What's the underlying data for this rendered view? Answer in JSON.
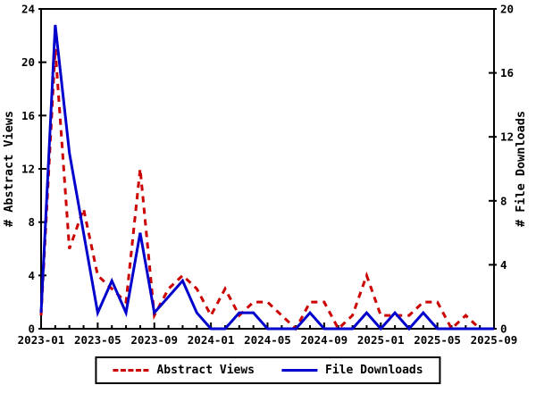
{
  "chart_data": {
    "type": "line",
    "x": [
      "2023-01",
      "2023-02",
      "2023-03",
      "2023-04",
      "2023-05",
      "2023-06",
      "2023-07",
      "2023-08",
      "2023-09",
      "2023-10",
      "2023-11",
      "2023-12",
      "2024-01",
      "2024-02",
      "2024-03",
      "2024-04",
      "2024-05",
      "2024-06",
      "2024-07",
      "2024-08",
      "2024-09",
      "2024-10",
      "2024-11",
      "2024-12",
      "2025-01",
      "2025-02",
      "2025-03",
      "2025-04",
      "2025-05",
      "2025-06",
      "2025-07",
      "2025-08",
      "2025-09"
    ],
    "series": [
      {
        "name": "Abstract Views",
        "color": "#cc0000",
        "style": "dashed",
        "axis": "left",
        "values": [
          1,
          21,
          6,
          9,
          4,
          3,
          2,
          12,
          1,
          3,
          4,
          3,
          1,
          3,
          1,
          2,
          2,
          1,
          0,
          2,
          2,
          0,
          1,
          4,
          1,
          1,
          1,
          2,
          2,
          0,
          1,
          0,
          0
        ]
      },
      {
        "name": "File Downloads",
        "color": "#0000cc",
        "style": "solid",
        "axis": "right",
        "values": [
          1,
          19,
          11,
          6,
          1,
          3,
          1,
          6,
          1,
          2,
          3,
          1,
          0,
          0,
          1,
          1,
          0,
          0,
          0,
          1,
          0,
          0,
          0,
          1,
          0,
          1,
          0,
          1,
          0,
          0,
          0,
          0,
          0
        ]
      }
    ],
    "left_axis": {
      "label": "# Abstract Views",
      "ticks": [
        0,
        4,
        8,
        12,
        16,
        20,
        24
      ],
      "range": [
        0,
        24
      ]
    },
    "right_axis": {
      "label": "# File Downloads",
      "ticks": [
        0,
        4,
        8,
        12,
        16,
        20
      ],
      "range": [
        0,
        20
      ]
    },
    "x_axis": {
      "major_tick_labels": [
        "2023-01",
        "2023-05",
        "2023-09",
        "2024-01",
        "2024-05",
        "2024-09",
        "2025-01",
        "2025-05",
        "2025-09"
      ],
      "major_tick_every_months": 4,
      "minor_tick_interval_months": 1
    },
    "legend": {
      "position": "bottom",
      "entries": [
        "Abstract Views",
        "File Downloads"
      ]
    },
    "grid": "off",
    "colors": {
      "axis": "#000000",
      "background": "#ffffff"
    }
  }
}
